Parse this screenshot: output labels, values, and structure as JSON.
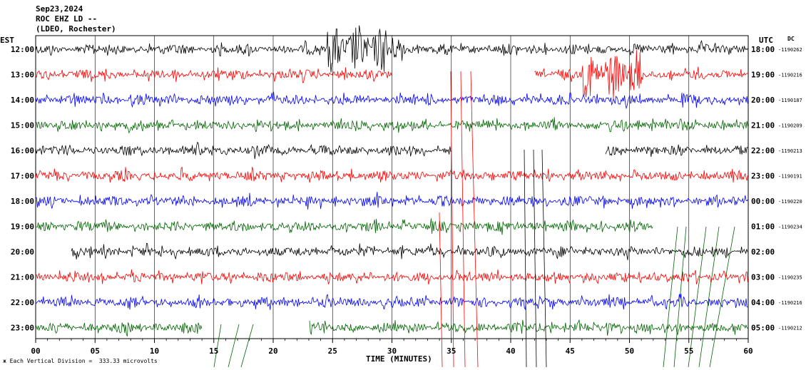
{
  "header": {
    "date": "Sep23,2024",
    "station": "ROC EHZ LD --",
    "network": "(LDEO, Rochester)",
    "left_zone": "EST",
    "right_zone": "UTC",
    "dc_label": "DC"
  },
  "chart_data": {
    "type": "line",
    "title": "",
    "xlabel": "TIME (MINUTES)",
    "ylabel": "",
    "xlim": [
      0,
      60
    ],
    "x_ticks": [
      "00",
      "05",
      "10",
      "15",
      "20",
      "25",
      "30",
      "35",
      "40",
      "45",
      "50",
      "55",
      "60"
    ],
    "grid": true,
    "footer_note": "Each Vertical Division =  333.33 microvolts",
    "trace_colors": [
      "#000000",
      "#ff0000",
      "#0000ff",
      "#006400"
    ],
    "rows": [
      {
        "left": "12:00",
        "right": "18:00",
        "dc": "-1190262",
        "color": "#000000",
        "start": 0,
        "end": 60
      },
      {
        "left": "13:00",
        "right": "19:00",
        "dc": "-1190216",
        "color": "#ff0000",
        "start": 0,
        "end": 60
      },
      {
        "left": "14:00",
        "right": "20:00",
        "dc": "-1190187",
        "color": "#0000ff",
        "start": 0,
        "end": 60
      },
      {
        "left": "15:00",
        "right": "21:00",
        "dc": "-1190209",
        "color": "#006400",
        "start": 0,
        "end": 60
      },
      {
        "left": "16:00",
        "right": "22:00",
        "dc": "-1190213",
        "color": "#000000",
        "start": 0,
        "end": 60
      },
      {
        "left": "17:00",
        "right": "23:00",
        "dc": "-1190191",
        "color": "#ff0000",
        "start": 0,
        "end": 60
      },
      {
        "left": "18:00",
        "right": "00:00",
        "dc": "-1190220",
        "color": "#0000ff",
        "start": 0,
        "end": 60
      },
      {
        "left": "19:00",
        "right": "01:00",
        "dc": "-1190234",
        "color": "#006400",
        "start": 0,
        "end": 52
      },
      {
        "left": "20:00",
        "right": "02:00",
        "dc": "",
        "color": "#000000",
        "start": 3,
        "end": 60
      },
      {
        "left": "21:00",
        "right": "03:00",
        "dc": "-1190235",
        "color": "#ff0000",
        "start": 0,
        "end": 60
      },
      {
        "left": "22:00",
        "right": "04:00",
        "dc": "-1190216",
        "color": "#0000ff",
        "start": 0,
        "end": 60
      },
      {
        "left": "23:00",
        "right": "05:00",
        "dc": "-1190212",
        "color": "#006400",
        "start": 0,
        "end": 60
      }
    ],
    "events": [
      {
        "row": 0,
        "from": 24.5,
        "to": 31,
        "label": "earthquake burst"
      },
      {
        "row": 1,
        "from": 46,
        "to": 51,
        "label": "local burst"
      }
    ],
    "gaps": [
      {
        "row": 1,
        "from": 30,
        "to": 42
      },
      {
        "row": 4,
        "from": 35,
        "to": 48
      },
      {
        "row": 11,
        "from": 14,
        "to": 23
      }
    ]
  }
}
